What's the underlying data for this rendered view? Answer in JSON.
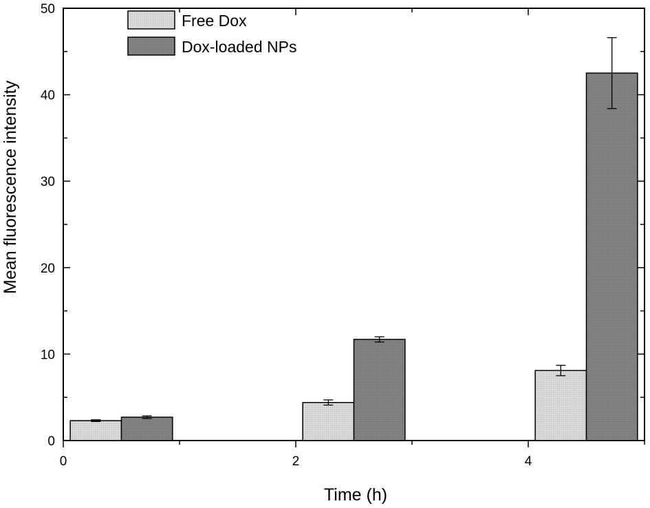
{
  "chart_data": {
    "type": "bar",
    "title": "",
    "xlabel": "Time (h)",
    "ylabel": "Mean fluorescence intensity",
    "x": [
      0.5,
      2.5,
      4.5
    ],
    "xlim": [
      0,
      5
    ],
    "xticks": [
      0,
      2,
      4
    ],
    "ylim": [
      0,
      50
    ],
    "yticks": [
      0,
      10,
      20,
      30,
      40,
      50
    ],
    "grid": false,
    "legend_position": "top-left",
    "series": [
      {
        "name": "Free Dox",
        "values": [
          2.3,
          4.4,
          8.1
        ],
        "errors": [
          0.1,
          0.3,
          0.6
        ],
        "color": "#d3d3d3"
      },
      {
        "name": "Dox-loaded NPs",
        "values": [
          2.7,
          11.7,
          42.5
        ],
        "errors": [
          0.15,
          0.3,
          4.1
        ],
        "color": "#808080"
      }
    ]
  }
}
